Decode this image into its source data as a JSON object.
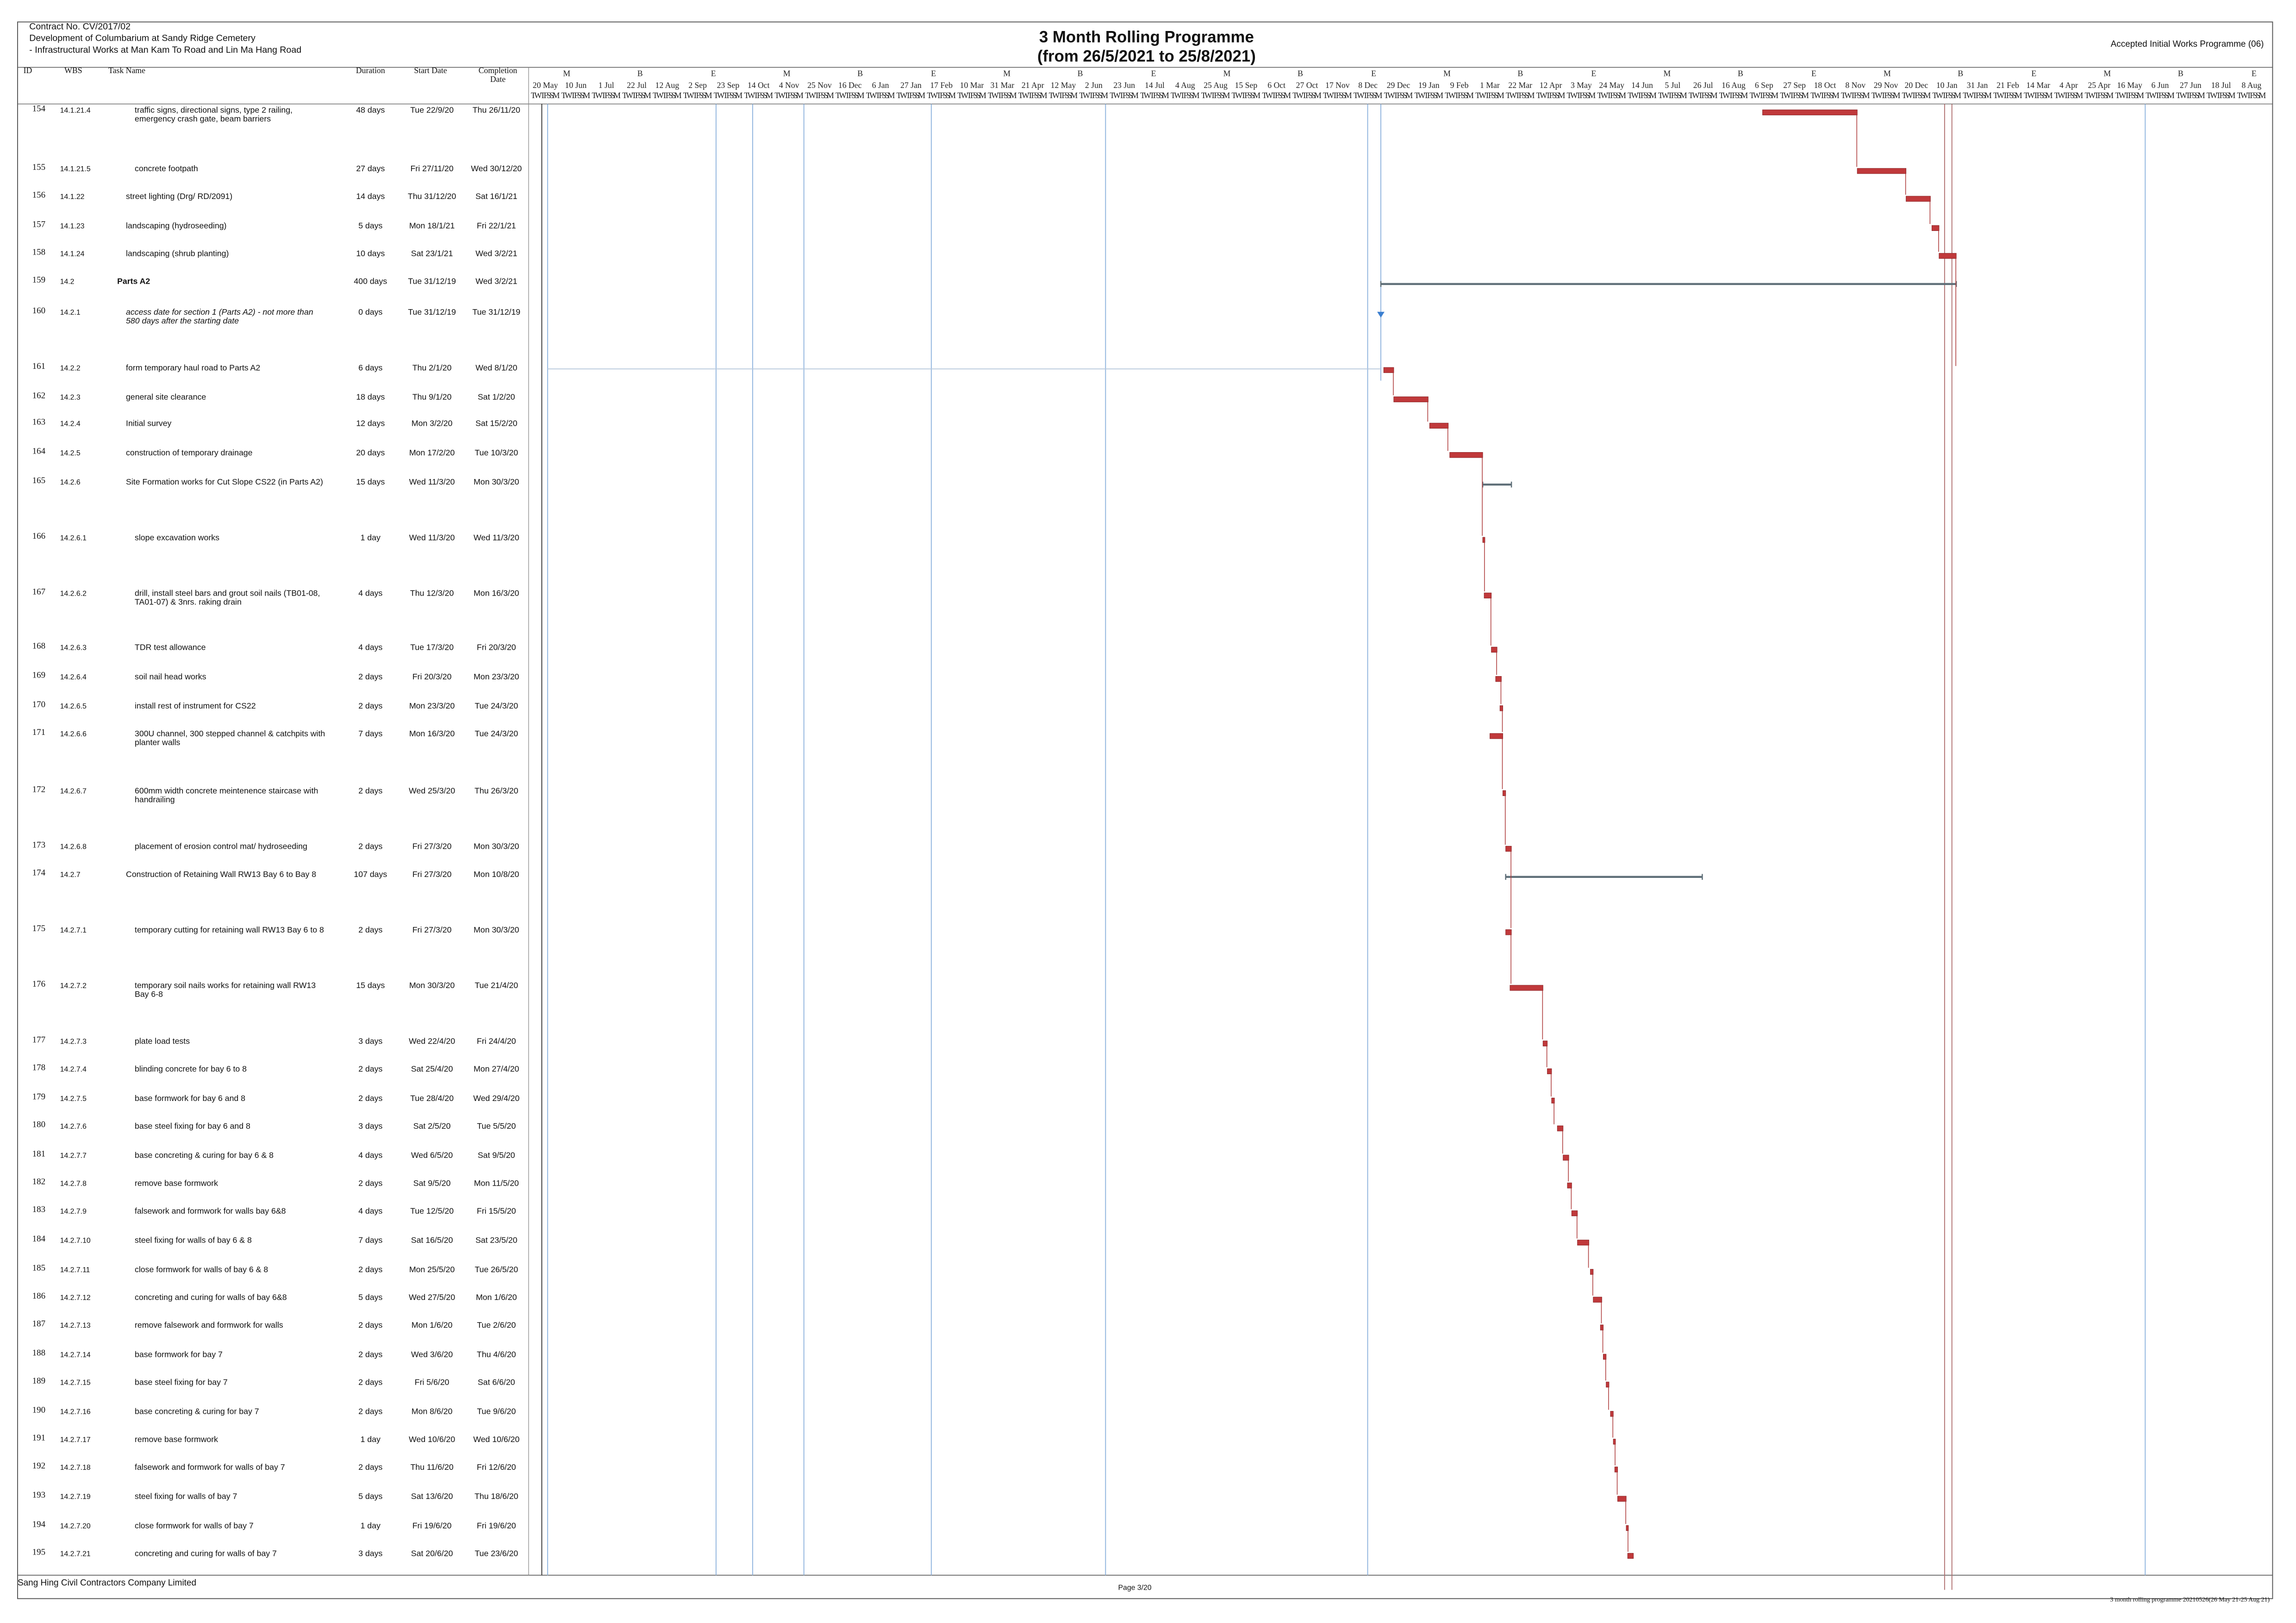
{
  "header": {
    "contract": "Contract No. CV/2017/02",
    "project_line1": "Development of Columbarium at Sandy Ridge Cemetery",
    "project_line2": "- Infrastructural Works at Man Kam To Road and Lin Ma Hang Road",
    "title": "3 Month Rolling Programme",
    "subtitle": "(from 26/5/2021 to 25/8/2021)",
    "programme": "Accepted Initial Works Programme (06)"
  },
  "columns": [
    "ID",
    "WBS",
    "Task Name",
    "Duration",
    "Start Date",
    "Completion Date"
  ],
  "timescale": {
    "tiers": [
      "M",
      "B",
      "E",
      "M",
      "B",
      "E",
      "M",
      "B",
      "E",
      "M",
      "B",
      "E",
      "M",
      "B",
      "E",
      "M",
      "B",
      "E",
      "M",
      "B",
      "E",
      "M",
      "B",
      "E"
    ],
    "dates": [
      "20 May",
      "10 Jun",
      "1 Jul",
      "22 Jul",
      "12 Aug",
      "2 Sep",
      "23 Sep",
      "14 Oct",
      "4 Nov",
      "25 Nov",
      "16 Dec",
      "6 Jan",
      "27 Jan",
      "17 Feb",
      "10 Mar",
      "31 Mar",
      "21 Apr",
      "12 May",
      "2 Jun",
      "23 Jun",
      "14 Jul",
      "4 Aug",
      "25 Aug",
      "15 Sep",
      "6 Oct",
      "27 Oct",
      "17 Nov",
      "8 Dec",
      "29 Dec",
      "19 Jan",
      "9 Feb",
      "1 Mar",
      "22 Mar",
      "12 Apr",
      "3 May",
      "24 May",
      "14 Jun",
      "5 Jul",
      "26 Jul",
      "16 Aug",
      "6 Sep",
      "27 Sep",
      "18 Oct",
      "8 Nov",
      "29 Nov",
      "20 Dec",
      "10 Jan",
      "31 Jan",
      "21 Feb",
      "14 Mar",
      "4 Apr",
      "25 Apr",
      "16 May",
      "6 Jun",
      "27 Jun",
      "18 Jul",
      "8 Aug"
    ],
    "days": "TWTFSSM"
  },
  "tasks": [
    {
      "id": "154",
      "wbs": "14.1.21.4",
      "name": "traffic signs, directional signs, type 2 railing, emergency crash gate, beam barriers",
      "duration": "48 days",
      "start": "Tue 22/9/20",
      "finish": "Thu 26/11/20"
    },
    {
      "id": "155",
      "wbs": "14.1.21.5",
      "name": "concrete footpath",
      "duration": "27 days",
      "start": "Fri 27/11/20",
      "finish": "Wed 30/12/20"
    },
    {
      "id": "156",
      "wbs": "14.1.22",
      "name": "street lighting (Drg/ RD/2091)",
      "duration": "14 days",
      "start": "Thu 31/12/20",
      "finish": "Sat 16/1/21"
    },
    {
      "id": "157",
      "wbs": "14.1.23",
      "name": "landscaping (hydroseeding)",
      "duration": "5 days",
      "start": "Mon 18/1/21",
      "finish": "Fri 22/1/21"
    },
    {
      "id": "158",
      "wbs": "14.1.24",
      "name": "landscaping (shrub planting)",
      "duration": "10 days",
      "start": "Sat 23/1/21",
      "finish": "Wed 3/2/21"
    },
    {
      "id": "159",
      "wbs": "14.2",
      "name": "Parts A2",
      "duration": "400 days",
      "start": "Tue 31/12/19",
      "finish": "Wed 3/2/21",
      "bold": true,
      "summary": true
    },
    {
      "id": "160",
      "wbs": "14.2.1",
      "name": "access date for section 1 (Parts A2) - not more than 580 days after the starting date",
      "duration": "0 days",
      "start": "Tue 31/12/19",
      "finish": "Tue 31/12/19",
      "italic": true,
      "milestone": true
    },
    {
      "id": "161",
      "wbs": "14.2.2",
      "name": "form temporary haul road to Parts A2",
      "duration": "6 days",
      "start": "Thu 2/1/20",
      "finish": "Wed 8/1/20"
    },
    {
      "id": "162",
      "wbs": "14.2.3",
      "name": "general site clearance",
      "duration": "18 days",
      "start": "Thu 9/1/20",
      "finish": "Sat 1/2/20"
    },
    {
      "id": "163",
      "wbs": "14.2.4",
      "name": "Initial survey",
      "duration": "12 days",
      "start": "Mon 3/2/20",
      "finish": "Sat 15/2/20"
    },
    {
      "id": "164",
      "wbs": "14.2.5",
      "name": "construction of temporary drainage",
      "duration": "20 days",
      "start": "Mon 17/2/20",
      "finish": "Tue 10/3/20"
    },
    {
      "id": "165",
      "wbs": "14.2.6",
      "name": "Site Formation works for Cut Slope CS22 (in Parts A2)",
      "duration": "15 days",
      "start": "Wed 11/3/20",
      "finish": "Mon 30/3/20",
      "summary": true
    },
    {
      "id": "166",
      "wbs": "14.2.6.1",
      "name": "slope excavation works",
      "duration": "1 day",
      "start": "Wed 11/3/20",
      "finish": "Wed 11/3/20"
    },
    {
      "id": "167",
      "wbs": "14.2.6.2",
      "name": "drill, install steel bars and grout soil nails (TB01-08, TA01-07) & 3nrs. raking drain",
      "duration": "4 days",
      "start": "Thu 12/3/20",
      "finish": "Mon 16/3/20"
    },
    {
      "id": "168",
      "wbs": "14.2.6.3",
      "name": "TDR test allowance",
      "duration": "4 days",
      "start": "Tue 17/3/20",
      "finish": "Fri 20/3/20"
    },
    {
      "id": "169",
      "wbs": "14.2.6.4",
      "name": "soil nail head works",
      "duration": "2 days",
      "start": "Fri 20/3/20",
      "finish": "Mon 23/3/20"
    },
    {
      "id": "170",
      "wbs": "14.2.6.5",
      "name": "install rest of instrument for CS22",
      "duration": "2 days",
      "start": "Mon 23/3/20",
      "finish": "Tue 24/3/20"
    },
    {
      "id": "171",
      "wbs": "14.2.6.6",
      "name": "300U channel, 300 stepped channel & catchpits with planter walls",
      "duration": "7 days",
      "start": "Mon 16/3/20",
      "finish": "Tue 24/3/20"
    },
    {
      "id": "172",
      "wbs": "14.2.6.7",
      "name": "600mm width concrete meintenence staircase with handrailing",
      "duration": "2 days",
      "start": "Wed 25/3/20",
      "finish": "Thu 26/3/20"
    },
    {
      "id": "173",
      "wbs": "14.2.6.8",
      "name": "placement of erosion control mat/ hydroseeding",
      "duration": "2 days",
      "start": "Fri 27/3/20",
      "finish": "Mon 30/3/20"
    },
    {
      "id": "174",
      "wbs": "14.2.7",
      "name": "Construction of Retaining Wall RW13 Bay 6 to Bay 8",
      "duration": "107 days",
      "start": "Fri 27/3/20",
      "finish": "Mon 10/8/20",
      "summary": true
    },
    {
      "id": "175",
      "wbs": "14.2.7.1",
      "name": "temporary cutting for retaining wall RW13 Bay 6 to 8",
      "duration": "2 days",
      "start": "Fri 27/3/20",
      "finish": "Mon 30/3/20"
    },
    {
      "id": "176",
      "wbs": "14.2.7.2",
      "name": "temporary soil nails works for retaining wall RW13 Bay 6-8",
      "duration": "15 days",
      "start": "Mon 30/3/20",
      "finish": "Tue 21/4/20"
    },
    {
      "id": "177",
      "wbs": "14.2.7.3",
      "name": "plate load tests",
      "duration": "3 days",
      "start": "Wed 22/4/20",
      "finish": "Fri 24/4/20"
    },
    {
      "id": "178",
      "wbs": "14.2.7.4",
      "name": "blinding concrete for bay 6 to 8",
      "duration": "2 days",
      "start": "Sat 25/4/20",
      "finish": "Mon 27/4/20"
    },
    {
      "id": "179",
      "wbs": "14.2.7.5",
      "name": "base formwork for bay 6 and 8",
      "duration": "2 days",
      "start": "Tue 28/4/20",
      "finish": "Wed 29/4/20"
    },
    {
      "id": "180",
      "wbs": "14.2.7.6",
      "name": "base steel fixing for bay 6 and 8",
      "duration": "3 days",
      "start": "Sat 2/5/20",
      "finish": "Tue 5/5/20"
    },
    {
      "id": "181",
      "wbs": "14.2.7.7",
      "name": "base concreting & curing for bay 6 & 8",
      "duration": "4 days",
      "start": "Wed 6/5/20",
      "finish": "Sat 9/5/20"
    },
    {
      "id": "182",
      "wbs": "14.2.7.8",
      "name": "remove base formwork",
      "duration": "2 days",
      "start": "Sat 9/5/20",
      "finish": "Mon 11/5/20"
    },
    {
      "id": "183",
      "wbs": "14.2.7.9",
      "name": "falsework and formwork for walls bay 6&8",
      "duration": "4 days",
      "start": "Tue 12/5/20",
      "finish": "Fri 15/5/20"
    },
    {
      "id": "184",
      "wbs": "14.2.7.10",
      "name": "steel fixing for walls of bay 6 & 8",
      "duration": "7 days",
      "start": "Sat 16/5/20",
      "finish": "Sat 23/5/20"
    },
    {
      "id": "185",
      "wbs": "14.2.7.11",
      "name": "close formwork for walls of bay 6 & 8",
      "duration": "2 days",
      "start": "Mon 25/5/20",
      "finish": "Tue 26/5/20"
    },
    {
      "id": "186",
      "wbs": "14.2.7.12",
      "name": "concreting and curing for walls of bay 6&8",
      "duration": "5 days",
      "start": "Wed 27/5/20",
      "finish": "Mon 1/6/20"
    },
    {
      "id": "187",
      "wbs": "14.2.7.13",
      "name": "remove falsework and formwork for walls",
      "duration": "2 days",
      "start": "Mon 1/6/20",
      "finish": "Tue 2/6/20"
    },
    {
      "id": "188",
      "wbs": "14.2.7.14",
      "name": "base formwork for bay 7",
      "duration": "2 days",
      "start": "Wed 3/6/20",
      "finish": "Thu 4/6/20"
    },
    {
      "id": "189",
      "wbs": "14.2.7.15",
      "name": "base steel fixing for bay 7",
      "duration": "2 days",
      "start": "Fri 5/6/20",
      "finish": "Sat 6/6/20"
    },
    {
      "id": "190",
      "wbs": "14.2.7.16",
      "name": "base concreting & curing for bay 7",
      "duration": "2 days",
      "start": "Mon 8/6/20",
      "finish": "Tue 9/6/20"
    },
    {
      "id": "191",
      "wbs": "14.2.7.17",
      "name": "remove base formwork",
      "duration": "1 day",
      "start": "Wed 10/6/20",
      "finish": "Wed 10/6/20"
    },
    {
      "id": "192",
      "wbs": "14.2.7.18",
      "name": "falsework and formwork for walls of bay 7",
      "duration": "2 days",
      "start": "Thu 11/6/20",
      "finish": "Fri 12/6/20"
    },
    {
      "id": "193",
      "wbs": "14.2.7.19",
      "name": "steel fixing for walls of bay 7",
      "duration": "5 days",
      "start": "Sat 13/6/20",
      "finish": "Thu 18/6/20"
    },
    {
      "id": "194",
      "wbs": "14.2.7.20",
      "name": "close formwork for walls of bay 7",
      "duration": "1 day",
      "start": "Fri 19/6/20",
      "finish": "Fri 19/6/20"
    },
    {
      "id": "195",
      "wbs": "14.2.7.21",
      "name": "concreting and curing for walls of bay 7",
      "duration": "3 days",
      "start": "Sat 20/6/20",
      "finish": "Tue 23/6/20"
    }
  ],
  "footer": {
    "company": "Sang Hing Civil Contractors Company Limited",
    "page": "Page 3/20",
    "file": "3 month rolling programme 20210526(26 May 21-25 Aug 21)"
  }
}
